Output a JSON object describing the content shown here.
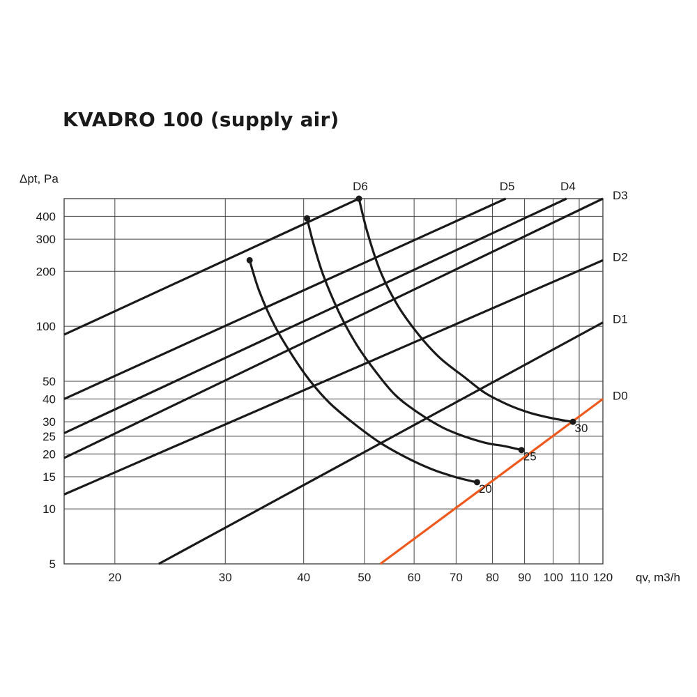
{
  "chart_data": {
    "type": "line",
    "title": "KVADRO 100 (supply air)",
    "ylabel": "Δpt, Pa",
    "xlabel": "qv, m3/h",
    "x_scale": "log",
    "y_scale": "log",
    "xlim": [
      16.6,
      120
    ],
    "ylim": [
      5,
      500
    ],
    "x_ticks": [
      20,
      30,
      40,
      50,
      60,
      70,
      80,
      90,
      100,
      110,
      120
    ],
    "y_ticks": [
      5,
      10,
      15,
      20,
      25,
      30,
      40,
      50,
      100,
      200,
      300,
      400
    ],
    "grid": true,
    "colors": {
      "lines": "#1a1a1a",
      "D0": "#ee5a1e",
      "grid": "#444444"
    },
    "series": [
      {
        "name": "D6",
        "color": "#1a1a1a",
        "x": [
          16.6,
          49
        ],
        "y": [
          90,
          500
        ]
      },
      {
        "name": "D5",
        "color": "#1a1a1a",
        "x": [
          16.6,
          84
        ],
        "y": [
          40,
          500
        ]
      },
      {
        "name": "D4",
        "color": "#1a1a1a",
        "x": [
          16.6,
          105
        ],
        "y": [
          26,
          500
        ]
      },
      {
        "name": "D3",
        "color": "#1a1a1a",
        "x": [
          16.6,
          120
        ],
        "y": [
          19,
          500
        ]
      },
      {
        "name": "D2",
        "color": "#1a1a1a",
        "x": [
          16.6,
          120
        ],
        "y": [
          12,
          230
        ]
      },
      {
        "name": "D1",
        "color": "#1a1a1a",
        "x": [
          23.5,
          120
        ],
        "y": [
          5,
          105
        ]
      },
      {
        "name": "D0",
        "color": "#ee5a1e",
        "x": [
          53,
          120
        ],
        "y": [
          5,
          40
        ]
      }
    ],
    "curves": [
      {
        "label": "20",
        "x": [
          32.8,
          34,
          36,
          38.5,
          41,
          44,
          48,
          53,
          58.5,
          64,
          69.5,
          74,
          75.6
        ],
        "y": [
          230,
          155,
          100,
          68,
          50,
          38,
          29.5,
          23,
          19,
          16.5,
          15,
          14.2,
          14
        ]
      },
      {
        "label": "25",
        "x": [
          40.5,
          41.5,
          43,
          45.5,
          48.5,
          52,
          56,
          61,
          66.5,
          72,
          78,
          84,
          89
        ],
        "y": [
          390,
          280,
          190,
          120,
          80,
          57,
          42,
          33.5,
          28,
          25,
          23,
          22,
          21
        ]
      },
      {
        "label": "30",
        "x": [
          49,
          50.5,
          53,
          56.5,
          61,
          66,
          72,
          78,
          85,
          92,
          99,
          104,
          107.5
        ],
        "y": [
          500,
          330,
          200,
          130,
          90,
          67,
          53,
          43,
          37,
          33.5,
          31.5,
          30.5,
          30
        ]
      }
    ]
  }
}
